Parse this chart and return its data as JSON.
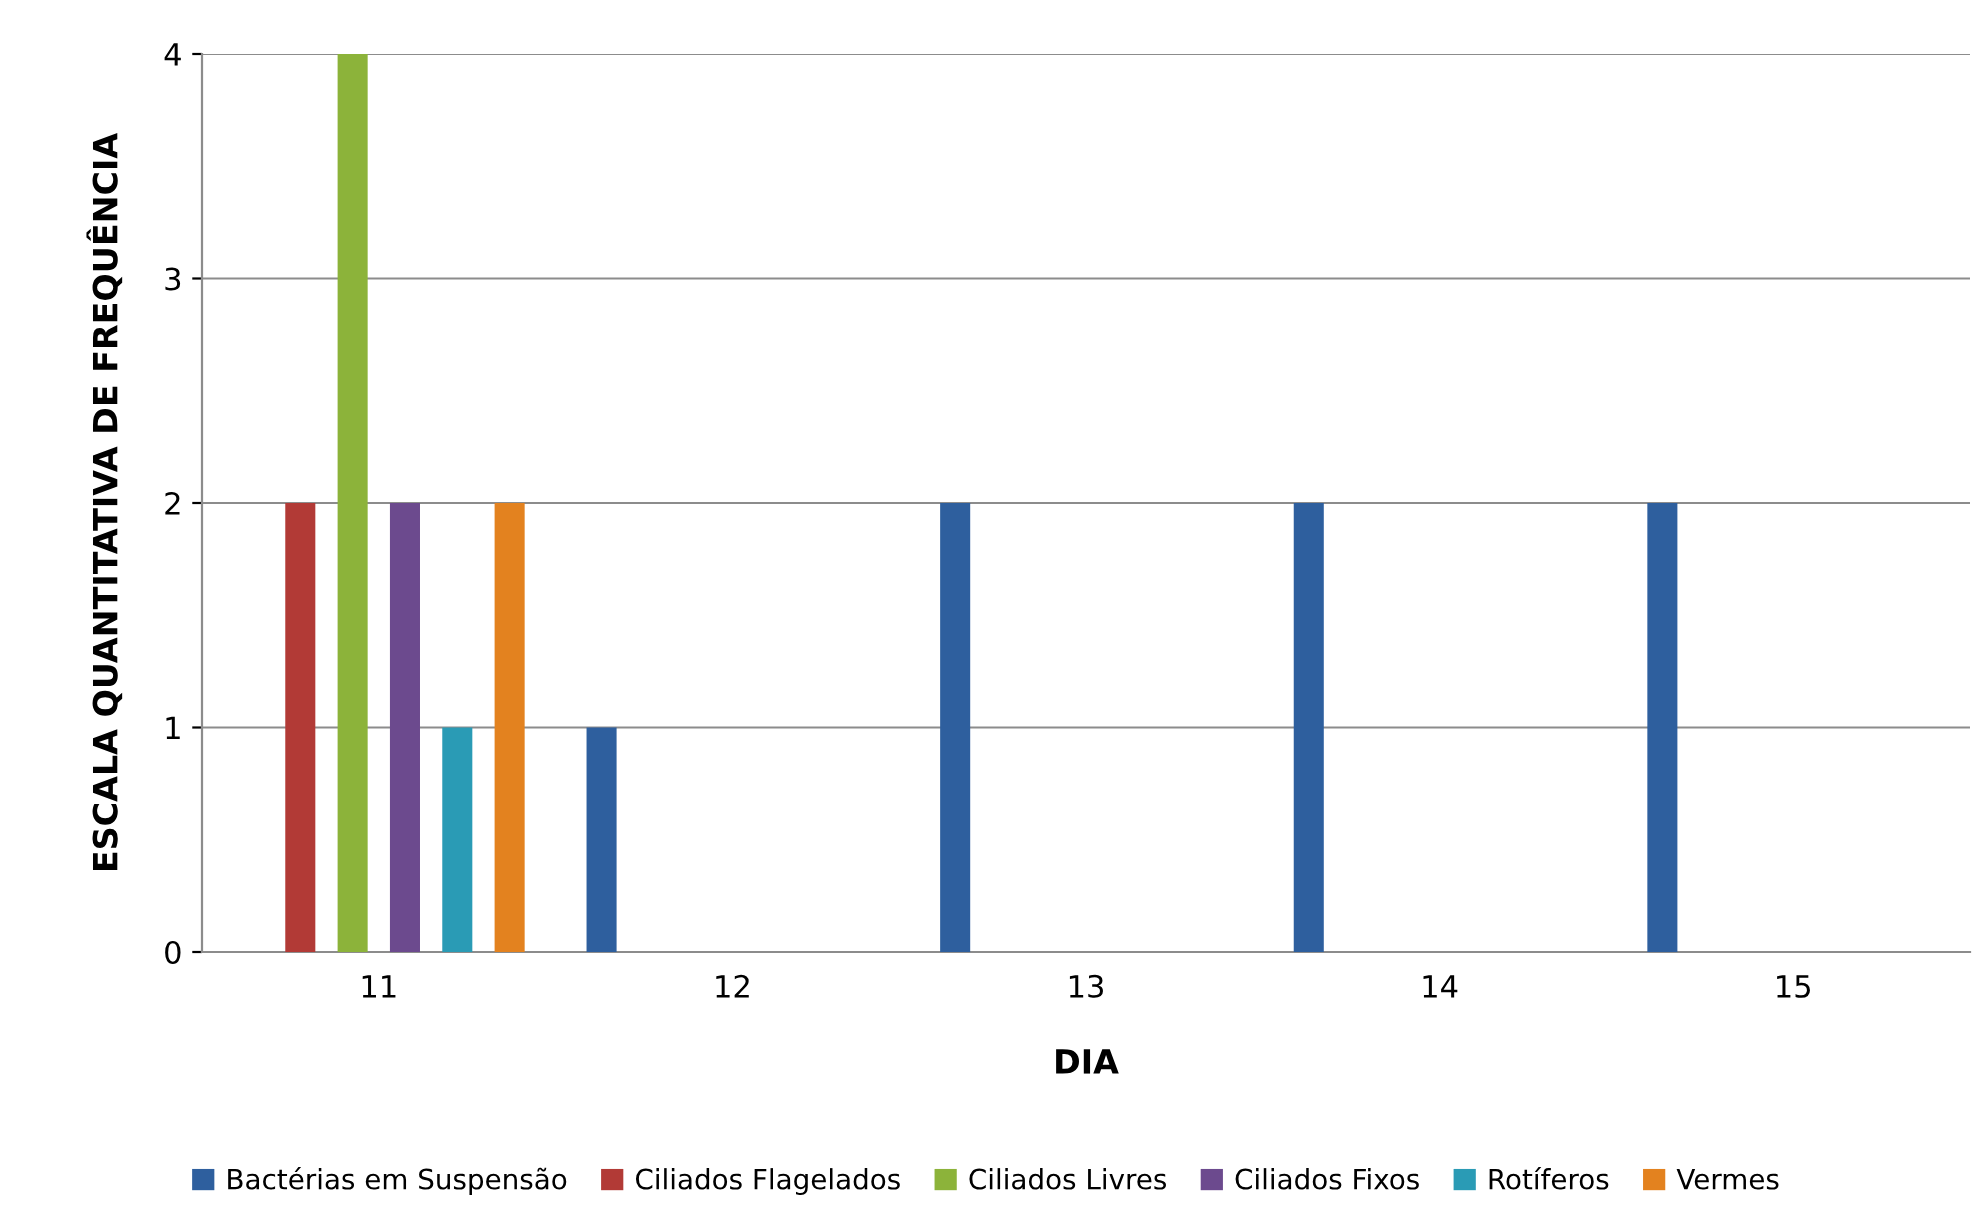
{
  "chart_data": {
    "type": "bar",
    "xlabel": "DIA",
    "ylabel": "ESCALA QUANTITATIVA DE FREQUÊNCIA",
    "categories": [
      "11",
      "12",
      "13",
      "14",
      "15"
    ],
    "series": [
      {
        "name": "Bactérias em Suspensão",
        "color": "#2e5f9e",
        "values": [
          0,
          1,
          2,
          2,
          2
        ]
      },
      {
        "name": "Ciliados Flagelados",
        "color": "#b23a36",
        "values": [
          2,
          0,
          0,
          0,
          0
        ]
      },
      {
        "name": "Ciliados Livres",
        "color": "#8cb33a",
        "values": [
          4,
          0,
          0,
          0,
          0
        ]
      },
      {
        "name": "Ciliados Fixos",
        "color": "#6c4a8e",
        "values": [
          2,
          0,
          0,
          0,
          0
        ]
      },
      {
        "name": "Rotíferos",
        "color": "#2a9bb5",
        "values": [
          1,
          0,
          0,
          0,
          0
        ]
      },
      {
        "name": "Vermes",
        "color": "#e3821f",
        "values": [
          2,
          0,
          0,
          0,
          0
        ]
      }
    ],
    "ylim": [
      0,
      4
    ],
    "yticks": [
      0,
      1,
      2,
      3,
      4
    ],
    "grid": "y",
    "legend": "bottom"
  }
}
